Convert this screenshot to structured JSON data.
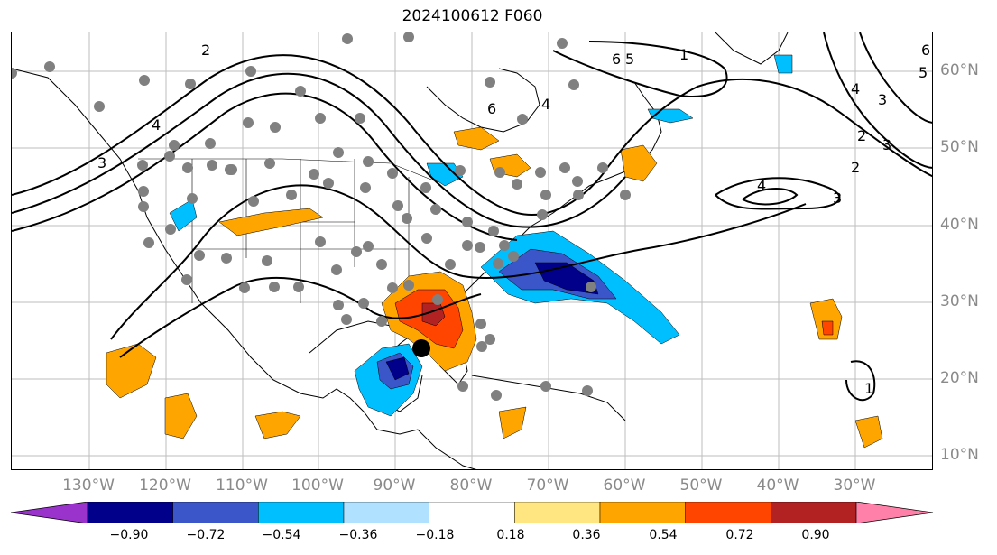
{
  "title": "2024100612 F060",
  "lon_labels": [
    "130°W",
    "120°W",
    "110°W",
    "100°W",
    "90°W",
    "80°W",
    "70°W",
    "60°W",
    "50°W",
    "40°W",
    "30°W"
  ],
  "lat_labels": [
    "60°N",
    "50°N",
    "40°N",
    "30°N",
    "20°N",
    "10°N"
  ],
  "colorbar": {
    "tick_labels": [
      "−0.90",
      "−0.72",
      "−0.54",
      "−0.36",
      "−0.18",
      "0.18",
      "0.36",
      "0.54",
      "0.72",
      "0.90"
    ],
    "colors": [
      "#9933cc",
      "#00008b",
      "#3a56c9",
      "#00bfff",
      "#b0e2ff",
      "#ffffff",
      "#ffe680",
      "#ffa500",
      "#ff4500",
      "#b22222",
      "#ff80a8"
    ]
  },
  "contour_labels": [
    "6",
    "5",
    "1",
    "6",
    "4",
    "4",
    "3",
    "2",
    "3",
    "2",
    "3",
    "4",
    "5",
    "6",
    "4",
    "3",
    "2",
    "1"
  ],
  "fill_colors": {
    "orange": "#ffa500",
    "red": "#ff4500",
    "darkred": "#b22222",
    "cyan": "#00bfff",
    "blue": "#3a56c9",
    "navy": "#00008b"
  },
  "marker_colors": {
    "station": "#808080",
    "storm": "#000000"
  }
}
